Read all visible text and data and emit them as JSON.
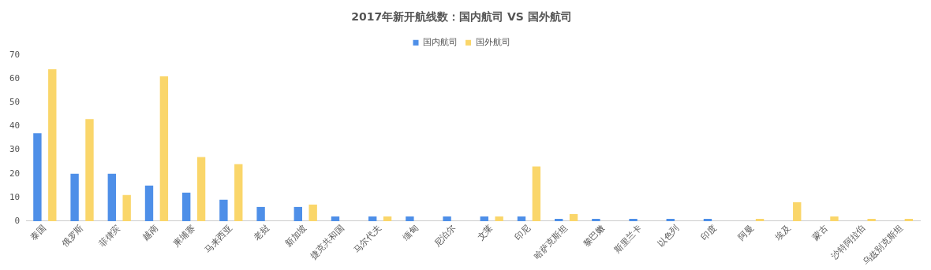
{
  "chart_data": {
    "type": "bar",
    "title": "2017年新开航线数：国内航司 VS 国外航司",
    "categories": [
      "泰国",
      "俄罗斯",
      "菲律宾",
      "越南",
      "柬埔寨",
      "马来西亚",
      "老挝",
      "新加坡",
      "捷克共和国",
      "马尔代夫",
      "缅甸",
      "尼泊尔",
      "文莱",
      "印尼",
      "哈萨克斯坦",
      "黎巴嫩",
      "斯里兰卡",
      "以色列",
      "印度",
      "阿曼",
      "埃及",
      "蒙古",
      "沙特阿拉伯",
      "乌兹别克斯坦"
    ],
    "series": [
      {
        "name": "国内航司",
        "color": "#4e8fe8",
        "values": [
          37,
          20,
          20,
          15,
          12,
          9,
          6,
          6,
          2,
          2,
          2,
          2,
          2,
          2,
          1,
          1,
          1,
          1,
          1,
          0,
          0,
          0,
          0,
          0
        ]
      },
      {
        "name": "国外航司",
        "color": "#fad66a",
        "values": [
          64,
          43,
          11,
          61,
          27,
          24,
          0,
          7,
          0,
          2,
          0,
          0,
          2,
          23,
          3,
          0,
          0,
          0,
          0,
          1,
          8,
          2,
          1,
          1
        ]
      }
    ],
    "ylim": [
      0,
      70
    ],
    "yticks": [
      0,
      10,
      20,
      30,
      40,
      50,
      60,
      70
    ],
    "grid": false,
    "legend": "top"
  }
}
